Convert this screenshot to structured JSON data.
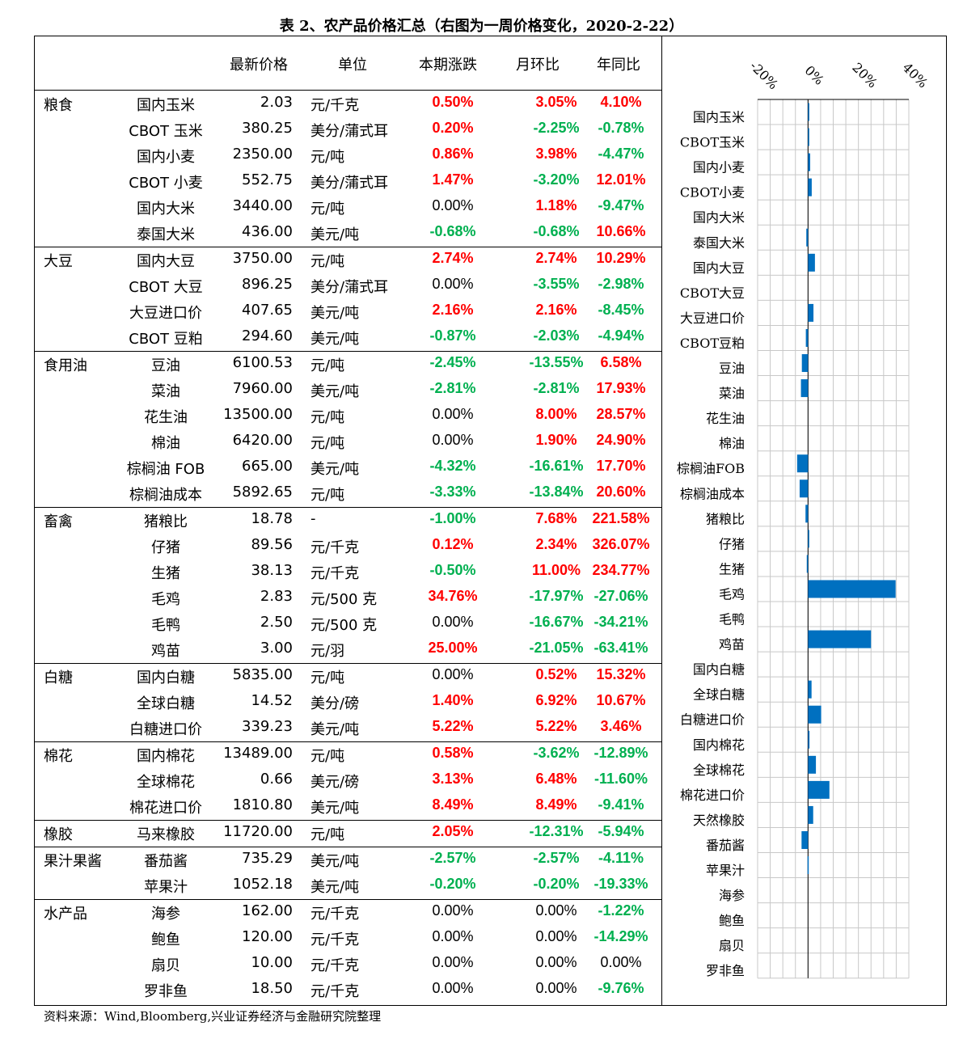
{
  "title": "表 2、农产品价格汇总（右图为一周价格变化，2020-2-22）",
  "headers": {
    "latest_price": "最新价格",
    "unit": "单位",
    "period_change": "本期涨跌",
    "mom": "月环比",
    "yoy": "年同比"
  },
  "source": "资料来源：Wind,Bloomberg,兴业证券经济与金融研究院整理",
  "colors": {
    "up": "#ff0000",
    "down": "#00b050",
    "bar": "#0070c0"
  },
  "groups": [
    {
      "category": "粮食",
      "rows": [
        {
          "name": "国内玉米",
          "price": "2.03",
          "unit": "元/千克",
          "v1": "0.50%",
          "v2": "3.05%",
          "v3": "4.10%"
        },
        {
          "name": "CBOT 玉米",
          "price": "380.25",
          "unit": "美分/蒲式耳",
          "v1": "0.20%",
          "v2": "-2.25%",
          "v3": "-0.78%"
        },
        {
          "name": "国内小麦",
          "price": "2350.00",
          "unit": "元/吨",
          "v1": "0.86%",
          "v2": "3.98%",
          "v3": "-4.47%"
        },
        {
          "name": "CBOT 小麦",
          "price": "552.75",
          "unit": "美分/蒲式耳",
          "v1": "1.47%",
          "v2": "-3.20%",
          "v3": "12.01%"
        },
        {
          "name": "国内大米",
          "price": "3440.00",
          "unit": "元/吨",
          "v1": "0.00%",
          "v2": "1.18%",
          "v3": "-9.47%"
        },
        {
          "name": "泰国大米",
          "price": "436.00",
          "unit": "美元/吨",
          "v1": "-0.68%",
          "v2": "-0.68%",
          "v3": "10.66%"
        }
      ]
    },
    {
      "category": "大豆",
      "rows": [
        {
          "name": "国内大豆",
          "price": "3750.00",
          "unit": "元/吨",
          "v1": "2.74%",
          "v2": "2.74%",
          "v3": "10.29%"
        },
        {
          "name": "CBOT 大豆",
          "price": "896.25",
          "unit": "美分/蒲式耳",
          "v1": "0.00%",
          "v2": "-3.55%",
          "v3": "-2.98%"
        },
        {
          "name": "大豆进口价",
          "price": "407.65",
          "unit": "美元/吨",
          "v1": "2.16%",
          "v2": "2.16%",
          "v3": "-8.45%"
        },
        {
          "name": "CBOT 豆粕",
          "price": "294.60",
          "unit": "美元/吨",
          "v1": "-0.87%",
          "v2": "-2.03%",
          "v3": "-4.94%"
        }
      ]
    },
    {
      "category": "食用油",
      "rows": [
        {
          "name": "豆油",
          "price": "6100.53",
          "unit": "元/吨",
          "v1": "-2.45%",
          "v2": "-13.55%",
          "v3": "6.58%"
        },
        {
          "name": "菜油",
          "price": "7960.00",
          "unit": "美元/吨",
          "v1": "-2.81%",
          "v2": "-2.81%",
          "v3": "17.93%"
        },
        {
          "name": "花生油",
          "price": "13500.00",
          "unit": "元/吨",
          "v1": "0.00%",
          "v2": "8.00%",
          "v3": "28.57%"
        },
        {
          "name": "棉油",
          "price": "6420.00",
          "unit": "元/吨",
          "v1": "0.00%",
          "v2": "1.90%",
          "v3": "24.90%"
        },
        {
          "name": "棕榈油 FOB",
          "price": "665.00",
          "unit": "美元/吨",
          "v1": "-4.32%",
          "v2": "-16.61%",
          "v3": "17.70%"
        },
        {
          "name": "棕榈油成本",
          "price": "5892.65",
          "unit": "元/吨",
          "v1": "-3.33%",
          "v2": "-13.84%",
          "v3": "20.60%"
        }
      ]
    },
    {
      "category": "畜禽",
      "rows": [
        {
          "name": "猪粮比",
          "price": "18.78",
          "unit": "-",
          "v1": "-1.00%",
          "v2": "7.68%",
          "v3": "221.58%"
        },
        {
          "name": "仔猪",
          "price": "89.56",
          "unit": "元/千克",
          "v1": "0.12%",
          "v2": "2.34%",
          "v3": "326.07%"
        },
        {
          "name": "生猪",
          "price": "38.13",
          "unit": "元/千克",
          "v1": "-0.50%",
          "v2": "11.00%",
          "v3": "234.77%"
        },
        {
          "name": "毛鸡",
          "price": "2.83",
          "unit": "元/500 克",
          "v1": "34.76%",
          "v2": "-17.97%",
          "v3": "-27.06%"
        },
        {
          "name": "毛鸭",
          "price": "2.50",
          "unit": "元/500 克",
          "v1": "0.00%",
          "v2": "-16.67%",
          "v3": "-34.21%"
        },
        {
          "name": "鸡苗",
          "price": "3.00",
          "unit": "元/羽",
          "v1": "25.00%",
          "v2": "-21.05%",
          "v3": "-63.41%"
        }
      ]
    },
    {
      "category": "白糖",
      "rows": [
        {
          "name": "国内白糖",
          "price": "5835.00",
          "unit": "元/吨",
          "v1": "0.00%",
          "v2": "0.52%",
          "v3": "15.32%"
        },
        {
          "name": "全球白糖",
          "price": "14.52",
          "unit": "美分/磅",
          "v1": "1.40%",
          "v2": "6.92%",
          "v3": "10.67%"
        },
        {
          "name": "白糖进口价",
          "price": "339.23",
          "unit": "美元/吨",
          "v1": "5.22%",
          "v2": "5.22%",
          "v3": "3.46%"
        }
      ]
    },
    {
      "category": "棉花",
      "rows": [
        {
          "name": "国内棉花",
          "price": "13489.00",
          "unit": "元/吨",
          "v1": "0.58%",
          "v2": "-3.62%",
          "v3": "-12.89%"
        },
        {
          "name": "全球棉花",
          "price": "0.66",
          "unit": "美元/磅",
          "v1": "3.13%",
          "v2": "6.48%",
          "v3": "-11.60%"
        },
        {
          "name": "棉花进口价",
          "price": "1810.80",
          "unit": "美元/吨",
          "v1": "8.49%",
          "v2": "8.49%",
          "v3": "-9.41%"
        }
      ]
    },
    {
      "category": "橡胶",
      "rows": [
        {
          "name": "马来橡胶",
          "price": "11720.00",
          "unit": "元/吨",
          "v1": "2.05%",
          "v2": "-12.31%",
          "v3": "-5.94%"
        }
      ]
    },
    {
      "category": "果汁果酱",
      "rows": [
        {
          "name": "番茄酱",
          "price": "735.29",
          "unit": "美元/吨",
          "v1": "-2.57%",
          "v2": "-2.57%",
          "v3": "-4.11%"
        },
        {
          "name": "苹果汁",
          "price": "1052.18",
          "unit": "美元/吨",
          "v1": "-0.20%",
          "v2": "-0.20%",
          "v3": "-19.33%"
        }
      ]
    },
    {
      "category": "水产品",
      "rows": [
        {
          "name": "海参",
          "price": "162.00",
          "unit": "元/千克",
          "v1": "0.00%",
          "v2": "0.00%",
          "v3": "-1.22%"
        },
        {
          "name": "鲍鱼",
          "price": "120.00",
          "unit": "元/千克",
          "v1": "0.00%",
          "v2": "0.00%",
          "v3": "-14.29%"
        },
        {
          "name": "扇贝",
          "price": "10.00",
          "unit": "元/千克",
          "v1": "0.00%",
          "v2": "0.00%",
          "v3": "0.00%"
        },
        {
          "name": "罗非鱼",
          "price": "18.50",
          "unit": "元/千克",
          "v1": "0.00%",
          "v2": "0.00%",
          "v3": "-9.76%"
        }
      ]
    }
  ],
  "chart_data": {
    "type": "bar",
    "orientation": "horizontal",
    "xlim": [
      -20,
      40
    ],
    "xticks": [
      "-20%",
      "0%",
      "20%",
      "40%"
    ],
    "grid": true,
    "categories": [
      "国内玉米",
      "CBOT玉米",
      "国内小麦",
      "CBOT小麦",
      "国内大米",
      "泰国大米",
      "国内大豆",
      "CBOT大豆",
      "大豆进口价",
      "CBOT豆粕",
      "豆油",
      "菜油",
      "花生油",
      "棉油",
      "棕榈油FOB",
      "棕榈油成本",
      "猪粮比",
      "仔猪",
      "生猪",
      "毛鸡",
      "毛鸭",
      "鸡苗",
      "国内白糖",
      "全球白糖",
      "白糖进口价",
      "国内棉花",
      "全球棉花",
      "棉花进口价",
      "天然橡胶",
      "番茄酱",
      "苹果汁",
      "海参",
      "鲍鱼",
      "扇贝",
      "罗非鱼"
    ],
    "values": [
      0.5,
      0.2,
      0.86,
      1.47,
      0.0,
      -0.68,
      2.74,
      0.0,
      2.16,
      -0.87,
      -2.45,
      -2.81,
      0.0,
      0.0,
      -4.32,
      -3.33,
      -1.0,
      0.12,
      -0.5,
      34.76,
      0.0,
      25.0,
      0.0,
      1.4,
      5.22,
      0.58,
      3.13,
      8.49,
      2.05,
      -2.57,
      -0.2,
      0.0,
      0.0,
      0.0,
      0.0
    ]
  }
}
